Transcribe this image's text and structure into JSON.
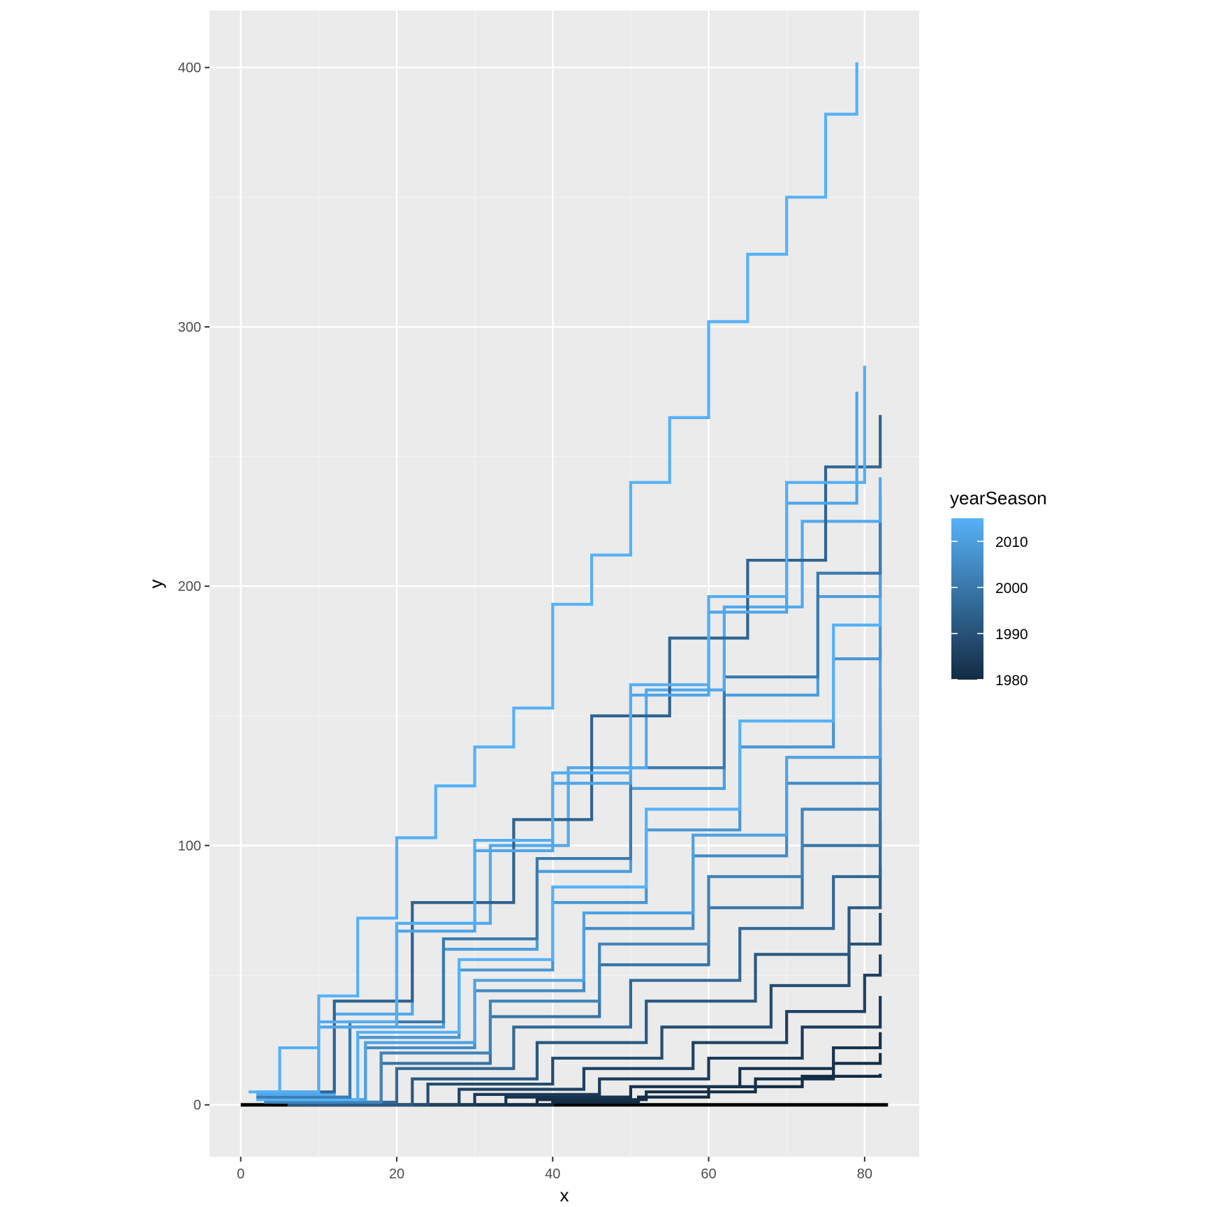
{
  "chart_data": {
    "type": "line",
    "geom": "step",
    "title": "",
    "xlabel": "x",
    "ylabel": "y",
    "xlim": [
      -4,
      87
    ],
    "ylim": [
      -20,
      422
    ],
    "x_ticks": [
      0,
      20,
      40,
      60,
      80
    ],
    "y_ticks": [
      0,
      100,
      200,
      300,
      400
    ],
    "x_tick_labels": [
      "0",
      "20",
      "40",
      "60",
      "80"
    ],
    "y_tick_labels": [
      "0",
      "100",
      "200",
      "300",
      "400"
    ],
    "grid": true,
    "background": "#ebebeb",
    "legend": {
      "title": "yearSeason",
      "position": "right",
      "type": "colorbar",
      "range": [
        1980,
        2015
      ],
      "breaks": [
        2010,
        2000,
        1990,
        1980
      ],
      "break_labels": [
        "2010",
        "2000",
        "1990",
        "1980"
      ],
      "low_color": "#132b43",
      "high_color": "#56b1f7"
    },
    "series_summary": "Cumulative step lines, one per player-season, coloured by yearSeason; most end between 10 and 285 at x of about 82.",
    "series": [
      {
        "year": 2016,
        "x": [
          1,
          5,
          10,
          15,
          20,
          25,
          30,
          35,
          40,
          45,
          50,
          55,
          60,
          65,
          70,
          75,
          79
        ],
        "y": [
          5,
          22,
          42,
          72,
          103,
          123,
          138,
          153,
          193,
          212,
          240,
          265,
          302,
          328,
          350,
          382,
          402
        ]
      },
      {
        "year": 2014,
        "x": [
          2,
          10,
          20,
          30,
          40,
          50,
          60,
          70,
          80
        ],
        "y": [
          5,
          32,
          70,
          102,
          128,
          162,
          196,
          240,
          285
        ]
      },
      {
        "year": 2012,
        "x": [
          2,
          10,
          20,
          30,
          40,
          50,
          60,
          70,
          79
        ],
        "y": [
          4,
          30,
          67,
          98,
          124,
          158,
          190,
          232,
          275
        ]
      },
      {
        "year": 1995,
        "x": [
          2,
          12,
          22,
          35,
          45,
          55,
          65,
          75,
          82
        ],
        "y": [
          5,
          40,
          78,
          110,
          150,
          180,
          210,
          246,
          266
        ]
      },
      {
        "year": 2013,
        "x": [
          2,
          12,
          22,
          32,
          42,
          52,
          62,
          72,
          82
        ],
        "y": [
          4,
          35,
          70,
          100,
          130,
          160,
          192,
          225,
          242
        ]
      },
      {
        "year": 2001,
        "x": [
          2,
          14,
          26,
          38,
          50,
          62,
          74,
          82
        ],
        "y": [
          3,
          32,
          64,
          95,
          130,
          165,
          205,
          235
        ]
      },
      {
        "year": 2010,
        "x": [
          2,
          14,
          26,
          38,
          50,
          62,
          74,
          82
        ],
        "y": [
          3,
          30,
          60,
          90,
          122,
          158,
          196,
          225
        ]
      },
      {
        "year": 2015,
        "x": [
          2,
          15,
          28,
          40,
          52,
          64,
          76,
          82
        ],
        "y": [
          2,
          28,
          56,
          84,
          114,
          148,
          185,
          212
        ]
      },
      {
        "year": 2008,
        "x": [
          2,
          15,
          28,
          40,
          52,
          64,
          76,
          82
        ],
        "y": [
          2,
          26,
          52,
          78,
          106,
          138,
          172,
          195
        ]
      },
      {
        "year": 2011,
        "x": [
          3,
          16,
          30,
          44,
          58,
          70,
          82
        ],
        "y": [
          2,
          24,
          48,
          74,
          104,
          134,
          176
        ]
      },
      {
        "year": 2005,
        "x": [
          3,
          16,
          30,
          44,
          58,
          70,
          82
        ],
        "y": [
          2,
          22,
          44,
          68,
          96,
          124,
          160
        ]
      },
      {
        "year": 2003,
        "x": [
          3,
          18,
          32,
          46,
          60,
          72,
          82
        ],
        "y": [
          1,
          20,
          40,
          62,
          88,
          114,
          145
        ]
      },
      {
        "year": 1999,
        "x": [
          4,
          18,
          32,
          46,
          60,
          72,
          82
        ],
        "y": [
          1,
          16,
          34,
          54,
          76,
          100,
          128
        ]
      },
      {
        "year": 1996,
        "x": [
          5,
          20,
          35,
          50,
          64,
          76,
          82
        ],
        "y": [
          1,
          14,
          30,
          48,
          68,
          88,
          110
        ]
      },
      {
        "year": 1992,
        "x": [
          6,
          22,
          38,
          52,
          66,
          78,
          82
        ],
        "y": [
          0,
          10,
          24,
          40,
          58,
          76,
          92
        ]
      },
      {
        "year": 1989,
        "x": [
          8,
          24,
          40,
          54,
          68,
          78,
          82
        ],
        "y": [
          0,
          8,
          18,
          30,
          46,
          62,
          74
        ]
      },
      {
        "year": 1986,
        "x": [
          10,
          28,
          44,
          58,
          70,
          80,
          82
        ],
        "y": [
          0,
          6,
          14,
          24,
          36,
          50,
          58
        ]
      },
      {
        "year": 1984,
        "x": [
          12,
          30,
          46,
          60,
          72,
          82
        ],
        "y": [
          0,
          4,
          10,
          18,
          30,
          42
        ]
      },
      {
        "year": 1982,
        "x": [
          14,
          34,
          50,
          64,
          76,
          82
        ],
        "y": [
          0,
          3,
          7,
          14,
          22,
          28
        ]
      },
      {
        "year": 1981,
        "x": [
          18,
          38,
          52,
          66,
          76,
          82
        ],
        "y": [
          0,
          2,
          5,
          10,
          16,
          20
        ]
      },
      {
        "year": 1980,
        "x": [
          20,
          40,
          51,
          60,
          72,
          82
        ],
        "y": [
          0,
          1,
          3,
          7,
          11,
          12
        ]
      },
      {
        "year": 1980,
        "x": [
          0,
          83
        ],
        "y": [
          0,
          0
        ]
      }
    ]
  }
}
